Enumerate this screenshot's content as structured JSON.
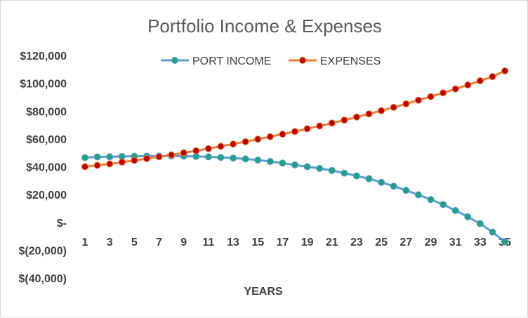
{
  "chart_data": {
    "type": "line",
    "title": "Portfolio Income & Expenses",
    "xlabel": "YEARS",
    "ylabel": "",
    "ylim": [
      -40000,
      120000
    ],
    "yticks": [
      120000,
      100000,
      80000,
      60000,
      40000,
      20000,
      0,
      -20000,
      -40000
    ],
    "ytick_labels": [
      "$120,000",
      "$100,000",
      "$80,000",
      "$60,000",
      "$40,000",
      "$20,000",
      "$-",
      "$(20,000)",
      "$(40,000)"
    ],
    "x": [
      1,
      2,
      3,
      4,
      5,
      6,
      7,
      8,
      9,
      10,
      11,
      12,
      13,
      14,
      15,
      16,
      17,
      18,
      19,
      20,
      21,
      22,
      23,
      24,
      25,
      26,
      27,
      28,
      29,
      30,
      31,
      32,
      33,
      34,
      35
    ],
    "xtick_labels": [
      "1",
      "3",
      "5",
      "7",
      "9",
      "11",
      "13",
      "15",
      "17",
      "19",
      "21",
      "23",
      "25",
      "27",
      "29",
      "31",
      "33",
      "35"
    ],
    "grid": false,
    "legend_position": "top",
    "series": [
      {
        "name": "PORT INCOME",
        "color": "#5b9bd5",
        "marker_color": "#23a184",
        "values": [
          46500,
          47000,
          47200,
          47400,
          47500,
          47600,
          47700,
          47700,
          47600,
          47400,
          47100,
          46700,
          46200,
          45600,
          44800,
          43800,
          42600,
          41300,
          40000,
          38800,
          37300,
          35400,
          33400,
          31400,
          28800,
          26000,
          23000,
          19800,
          16400,
          12800,
          8500,
          4000,
          -900,
          -7000,
          -14000
        ]
      },
      {
        "name": "EXPENSES",
        "color": "#ed7d31",
        "marker_color": "#c00000",
        "values": [
          40000,
          41000,
          42000,
          43300,
          44500,
          45800,
          47200,
          48500,
          50000,
          51500,
          53000,
          54700,
          56300,
          58000,
          59800,
          61600,
          63400,
          65300,
          67300,
          69300,
          71400,
          73500,
          75700,
          78000,
          80300,
          82700,
          85200,
          87800,
          90400,
          93100,
          95900,
          98800,
          101800,
          104800,
          108900
        ]
      }
    ]
  }
}
